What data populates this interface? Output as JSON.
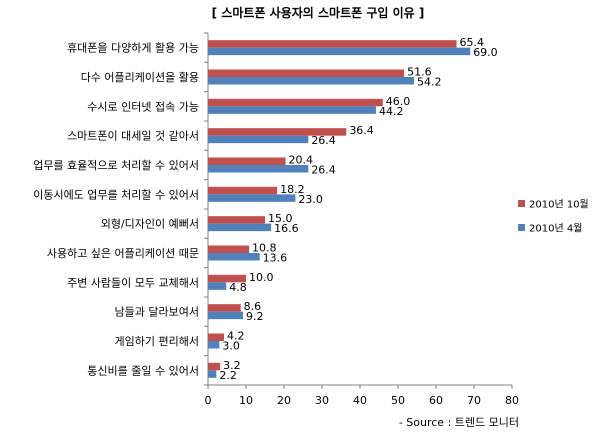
{
  "chart_data": {
    "type": "bar",
    "orientation": "horizontal",
    "title": "[ 스마트폰 사용자의 스마트폰 구입 이유 ]",
    "categories": [
      "휴대폰을 다양하게 활용 가능",
      "다수 어플리케이션을 활용",
      "수시로 인터넷 접속 가능",
      "스마트폰이 대세일 것 같아서",
      "업무를 효율적으로 처리할 수 있어서",
      "이동시에도 업무를 처리할 수 있어서",
      "외형/디자인이 예뻐서",
      "사용하고 싶은 어플리케이션 때문",
      "주변 사람들이 모두 교체해서",
      "남들과 달라보여서",
      "게임하기 편리해서",
      "통신비를 줄일 수 있어서"
    ],
    "series": [
      {
        "name": "2010년 10월",
        "color": "#c0504d",
        "values": [
          65.4,
          51.6,
          46.0,
          36.4,
          20.4,
          18.2,
          15.0,
          10.8,
          10.0,
          8.6,
          4.2,
          3.2
        ],
        "labels": [
          "65.4",
          "51.6",
          "46.0",
          "36.4",
          "20.4",
          "18.2",
          "15.0",
          "10.8",
          "10.0",
          "8.6",
          "4.2",
          "3.2"
        ]
      },
      {
        "name": "2010년 4월",
        "color": "#4f81bd",
        "values": [
          69.0,
          54.2,
          44.2,
          26.4,
          26.4,
          23.0,
          16.6,
          13.6,
          4.8,
          9.2,
          3.0,
          2.2
        ],
        "labels": [
          "69.0",
          "54.2",
          "44.2",
          "26.4",
          "26.4",
          "23.0",
          "16.6",
          "13.6",
          "4.8",
          "9.2",
          "3.0",
          "2.2"
        ]
      }
    ],
    "x_ticks": [
      "0",
      "10",
      "20",
      "30",
      "40",
      "50",
      "60",
      "70",
      "80"
    ],
    "xlim": [
      0,
      80
    ],
    "grid": false,
    "legend_position": "right",
    "source": "- Source : 트렌드 모니터"
  }
}
